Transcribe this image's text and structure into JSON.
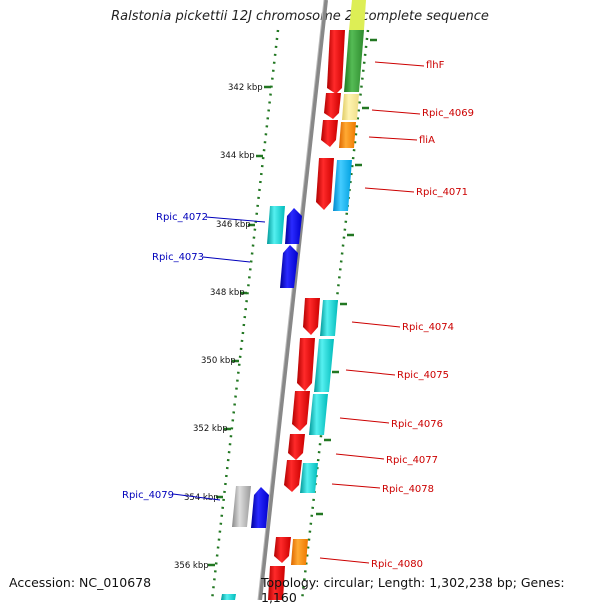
{
  "title": "Ralstonia pickettii 12J chromosome 2, complete sequence",
  "footer": {
    "accession": "Accession: NC_010678",
    "topology": "Topology: circular; Length: 1,302,238 bp; Genes: 1,160"
  },
  "ticks": [
    "342 kbp",
    "344 kbp",
    "346 kbp",
    "348 kbp",
    "350 kbp",
    "352 kbp",
    "354 kbp",
    "356 kbp"
  ],
  "gene_labels": {
    "flhF": "flhF",
    "rpic_4069": "Rpic_4069",
    "fliA": "fliA",
    "rpic_4071": "Rpic_4071",
    "rpic_4072": "Rpic_4072",
    "rpic_4073": "Rpic_4073",
    "rpic_4074": "Rpic_4074",
    "rpic_4075": "Rpic_4075",
    "rpic_4076": "Rpic_4076",
    "rpic_4077": "Rpic_4077",
    "rpic_4078": "Rpic_4078",
    "rpic_4079": "Rpic_4079",
    "rpic_4080": "Rpic_4080"
  },
  "colors": {
    "cds_forward": "#ee0000",
    "cds_reverse": "#0000ee",
    "cog_cyan": "#00cccc",
    "cog_green": "#339933",
    "cog_yellow": "#f0e08a",
    "cog_orange": "#ff8800",
    "cog_gray": "#b0b0b0",
    "tick_green": "#227722",
    "backbone": "#888888"
  }
}
